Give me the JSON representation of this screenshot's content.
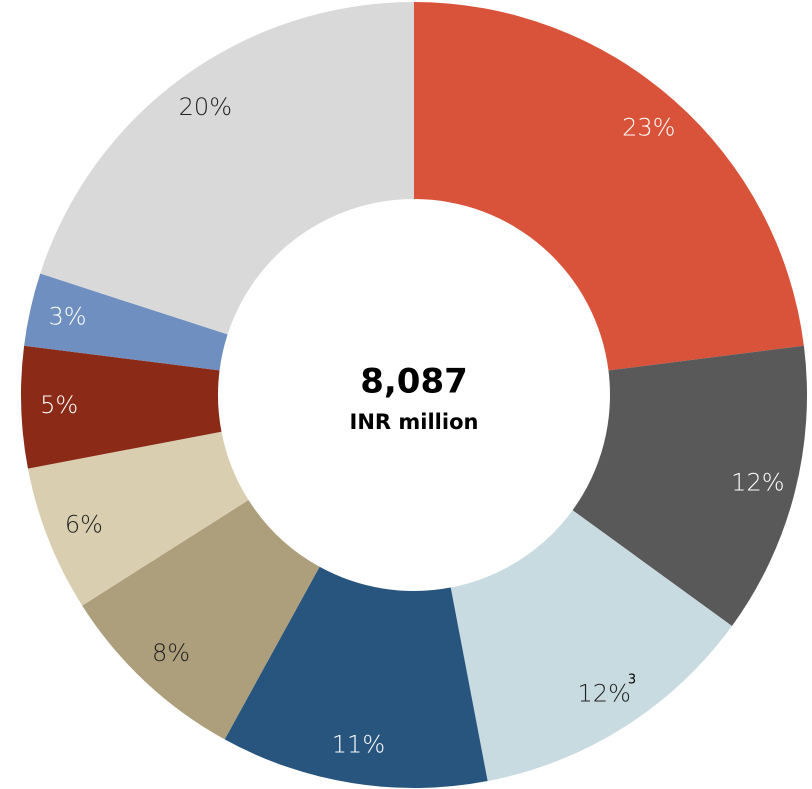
{
  "chart_data": {
    "type": "donut",
    "values": [
      23,
      12,
      12,
      11,
      8,
      6,
      5,
      3,
      20
    ],
    "value_labels": [
      "23%",
      "12%",
      "12%",
      "11%",
      "8%",
      "6%",
      "5%",
      "3%",
      "20%"
    ],
    "colors": [
      "#d9533a",
      "#595959",
      "#c8dbe0",
      "#27557e",
      "#ad9f7b",
      "#d9cfb0",
      "#8b2a17",
      "#6e8fbf",
      "#d9d9d9"
    ],
    "center_value": "8,087",
    "center_unit": "INR million",
    "annotation": "3"
  }
}
